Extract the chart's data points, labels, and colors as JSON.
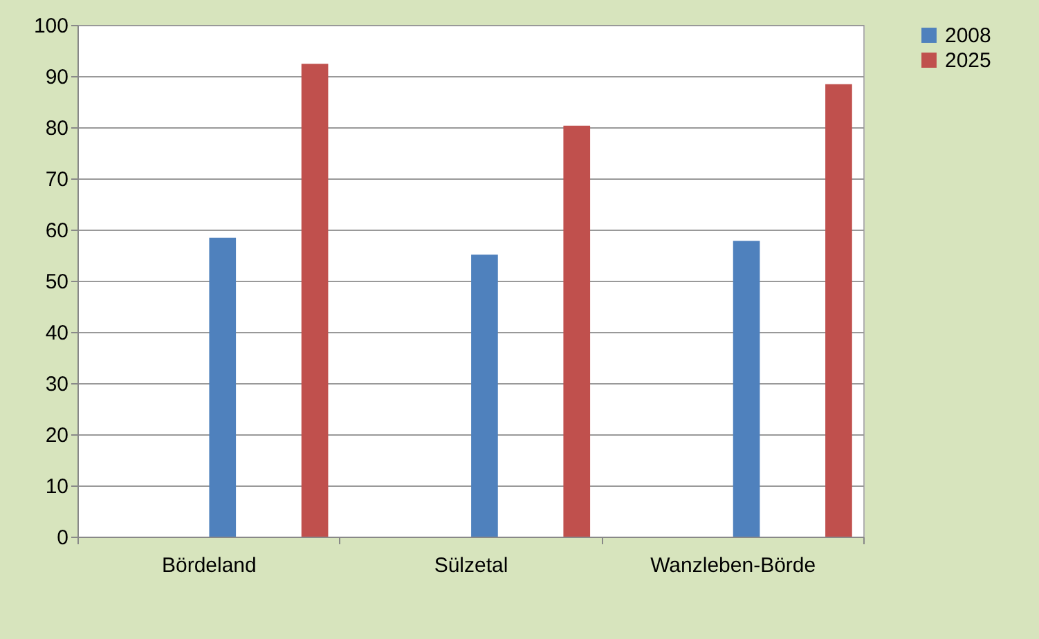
{
  "chart_data": {
    "type": "bar",
    "categories": [
      "Bördeland",
      "Sülzetal",
      "Wanzleben-Börde"
    ],
    "series": [
      {
        "name": "2008",
        "color": "#4f81bd",
        "values": [
          58.4,
          55.1,
          57.8
        ]
      },
      {
        "name": "2025",
        "color": "#c0504d",
        "values": [
          92.4,
          80.3,
          88.4
        ]
      }
    ],
    "ylim": [
      0,
      100
    ],
    "yticks": [
      0,
      10,
      20,
      30,
      40,
      50,
      60,
      70,
      80,
      90,
      100
    ],
    "grid": "y",
    "legend": "right"
  }
}
